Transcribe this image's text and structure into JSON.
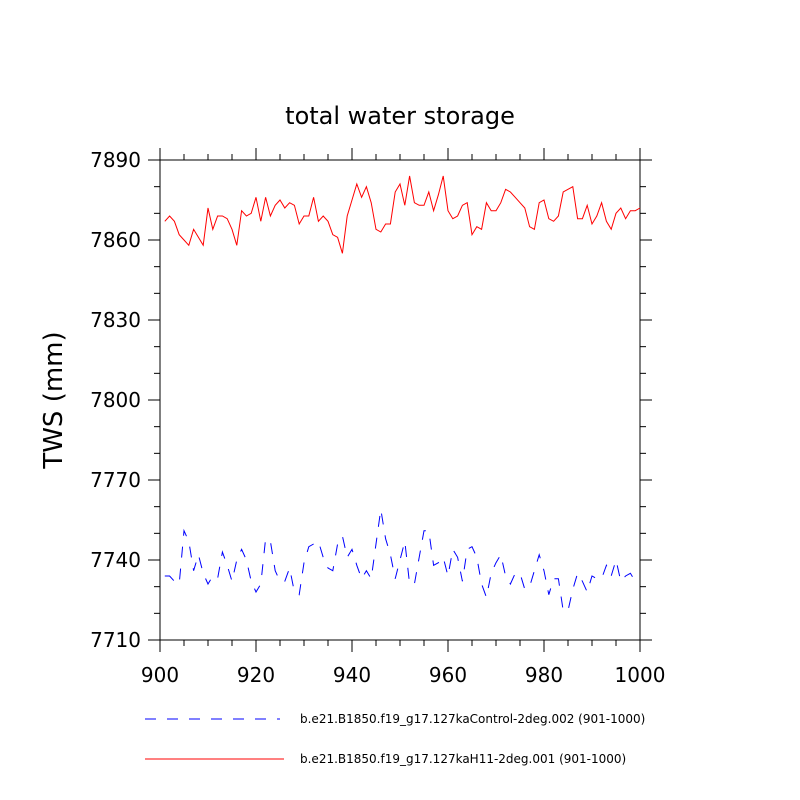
{
  "chart_data": {
    "type": "line",
    "title": "total water storage",
    "xlabel": "",
    "ylabel": "TWS  (mm)",
    "xlim": [
      900,
      1000
    ],
    "ylim": [
      7710,
      7890
    ],
    "xticks": [
      900,
      920,
      940,
      960,
      980,
      1000
    ],
    "yticks": [
      7710,
      7740,
      7770,
      7800,
      7830,
      7860,
      7890
    ],
    "x_start": 901,
    "series": [
      {
        "name": "b.e21.B1850.f19_g17.127kaControl-2deg.002 (901-1000)",
        "color": "#0000ff",
        "style": "dashed",
        "values": [
          7734,
          7734,
          7732,
          7731,
          7751,
          7747,
          7736,
          7742,
          7735,
          7731,
          7734,
          7733,
          7743,
          7738,
          7732,
          7740,
          7744,
          7740,
          7732,
          7728,
          7731,
          7748,
          7747,
          7736,
          7732,
          7732,
          7737,
          7728,
          7727,
          7739,
          7745,
          7746,
          7747,
          7741,
          7737,
          7736,
          7746,
          7749,
          7741,
          7744,
          7738,
          7733,
          7736,
          7733,
          7746,
          7759,
          7748,
          7742,
          7733,
          7740,
          7747,
          7731,
          7731,
          7741,
          7751,
          7751,
          7738,
          7739,
          7741,
          7734,
          7744,
          7741,
          7732,
          7744,
          7745,
          7741,
          7731,
          7726,
          7735,
          7739,
          7742,
          7734,
          7731,
          7735,
          7735,
          7729,
          7730,
          7736,
          7742,
          7736,
          7727,
          7733,
          7733,
          7721,
          7721,
          7729,
          7735,
          7732,
          7728,
          7734,
          7733,
          7733,
          7738,
          7734,
          7740,
          7732,
          7734,
          7735,
          7732,
          7732
        ]
      },
      {
        "name": "b.e21.B1850.f19_g17.127kaH11-2deg.001 (901-1000)",
        "color": "#ff0000",
        "style": "solid",
        "values": [
          7867,
          7869,
          7867,
          7862,
          7860,
          7858,
          7864,
          7861,
          7858,
          7872,
          7864,
          7869,
          7869,
          7868,
          7864,
          7858,
          7871,
          7869,
          7870,
          7876,
          7867,
          7876,
          7869,
          7873,
          7875,
          7872,
          7874,
          7873,
          7866,
          7869,
          7869,
          7876,
          7867,
          7869,
          7867,
          7862,
          7861,
          7855,
          7869,
          7875,
          7881,
          7876,
          7880,
          7874,
          7864,
          7863,
          7866,
          7866,
          7878,
          7881,
          7873,
          7884,
          7874,
          7873,
          7873,
          7878,
          7871,
          7877,
          7884,
          7871,
          7868,
          7869,
          7873,
          7874,
          7862,
          7865,
          7864,
          7874,
          7871,
          7871,
          7874,
          7879,
          7878,
          7876,
          7874,
          7872,
          7865,
          7864,
          7874,
          7875,
          7868,
          7867,
          7869,
          7878,
          7879,
          7880,
          7868,
          7868,
          7873,
          7866,
          7869,
          7874,
          7867,
          7864,
          7870,
          7872,
          7868,
          7871,
          7871,
          7872
        ]
      }
    ]
  }
}
